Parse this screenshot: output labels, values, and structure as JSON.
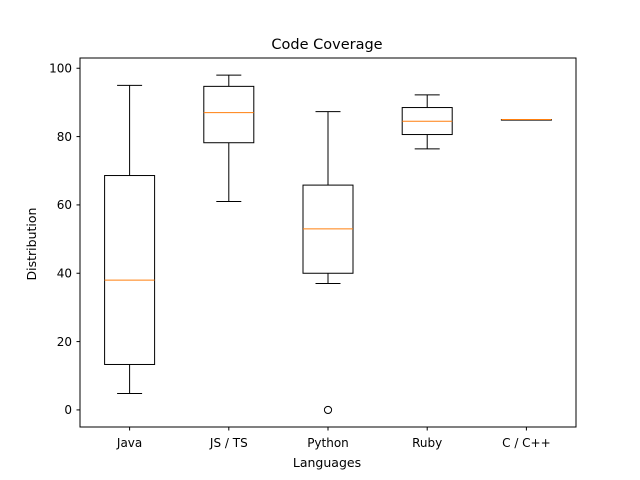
{
  "chart_data": {
    "type": "box",
    "title": "Code Coverage",
    "xlabel": "Languages",
    "ylabel": "Distribution",
    "ylim": [
      -5,
      103
    ],
    "yticks": [
      0,
      20,
      40,
      60,
      80,
      100
    ],
    "grid": false,
    "categories": [
      "Java",
      "JS / TS",
      "Python",
      "Ruby",
      "C / C++"
    ],
    "boxes": [
      {
        "whisker_low": 4.8,
        "q1": 13.3,
        "median": 38.0,
        "q3": 68.6,
        "whisker_high": 95.0,
        "outliers": []
      },
      {
        "whisker_low": 61.0,
        "q1": 78.2,
        "median": 87.0,
        "q3": 94.7,
        "whisker_high": 98.0,
        "outliers": []
      },
      {
        "whisker_low": 37.0,
        "q1": 40.0,
        "median": 53.0,
        "q3": 65.8,
        "whisker_high": 87.3,
        "outliers": [
          0.0
        ]
      },
      {
        "whisker_low": 76.4,
        "q1": 80.6,
        "median": 84.5,
        "q3": 88.5,
        "whisker_high": 92.2,
        "outliers": []
      },
      {
        "whisker_low": 85.0,
        "q1": 85.0,
        "median": 85.0,
        "q3": 85.0,
        "whisker_high": 85.0,
        "outliers": []
      }
    ],
    "colors": {
      "box": "#000000",
      "median": "#ff7f0e",
      "background": "#ffffff"
    }
  }
}
